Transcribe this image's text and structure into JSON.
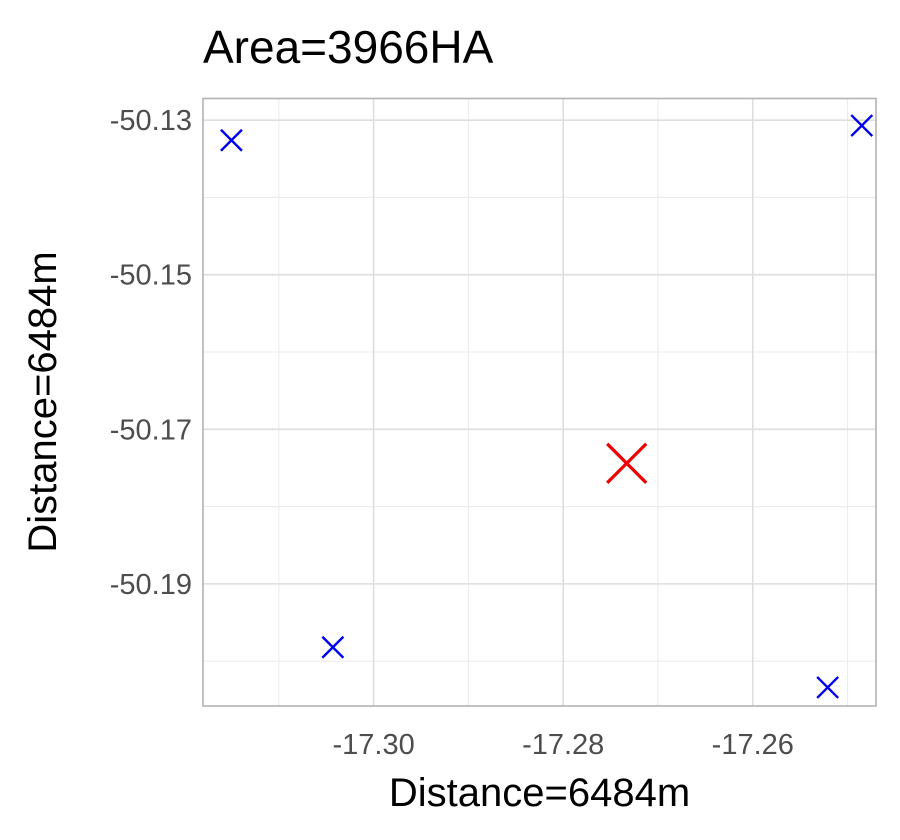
{
  "chart_data": {
    "type": "scatter",
    "title": "Area=3966HA",
    "xlabel": "Distance=6484m",
    "ylabel": "Distance=6484m",
    "xlim": [
      -17.318,
      -17.247
    ],
    "ylim": [
      -50.2058,
      -50.1272
    ],
    "x_ticks": [
      {
        "value": -17.3,
        "label": "-17.30"
      },
      {
        "value": -17.28,
        "label": "-17.28"
      },
      {
        "value": -17.26,
        "label": "-17.26"
      }
    ],
    "y_ticks": [
      {
        "value": -50.13,
        "label": "-50.13"
      },
      {
        "value": -50.15,
        "label": "-50.15"
      },
      {
        "value": -50.17,
        "label": "-50.17"
      },
      {
        "value": -50.19,
        "label": "-50.19"
      }
    ],
    "x_minor": [
      -17.31,
      -17.29,
      -17.27,
      -17.25
    ],
    "y_minor": [
      -50.14,
      -50.16,
      -50.18,
      -50.2
    ],
    "grid": true,
    "series": [
      {
        "color": "#0000ee",
        "marker": "x",
        "points": [
          {
            "x": -17.315,
            "y": -50.1326
          },
          {
            "x": -17.3043,
            "y": -50.1982
          },
          {
            "x": -17.2521,
            "y": -50.2034
          },
          {
            "x": -17.2485,
            "y": -50.1307
          }
        ]
      },
      {
        "color": "#ee0000",
        "marker": "x",
        "points": [
          {
            "x": -17.2733,
            "y": -50.1744
          }
        ]
      }
    ]
  }
}
